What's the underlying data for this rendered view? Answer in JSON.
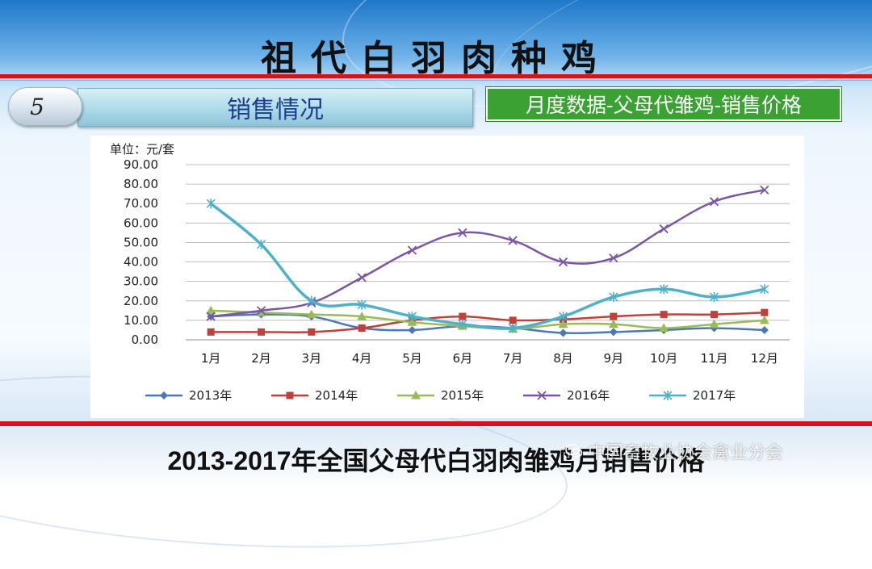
{
  "slide": {
    "title": "祖代白羽肉种鸡",
    "section_number": "5",
    "section_title": "销售情况",
    "badge": "月度数据-父母代雏鸡-销售价格",
    "caption": "2013-2017年全国父母代白羽肉雏鸡月销售价格",
    "watermark": "中国畜牧业协会禽业分会",
    "colors": {
      "title_red_rule": "#d4141b",
      "badge_green": "#3aa132",
      "section_text": "#1b3f8a"
    }
  },
  "chart_data": {
    "type": "line",
    "unit_label": "单位：元/套",
    "categories": [
      "1月",
      "2月",
      "3月",
      "4月",
      "5月",
      "6月",
      "7月",
      "8月",
      "9月",
      "10月",
      "11月",
      "12月"
    ],
    "ylim": [
      0,
      90
    ],
    "yticks": [
      "0.00",
      "10.00",
      "20.00",
      "30.00",
      "40.00",
      "50.00",
      "60.00",
      "70.00",
      "80.00",
      "90.00"
    ],
    "grid": true,
    "legend_position": "bottom",
    "series": [
      {
        "name": "2013年",
        "color": "#4b79b8",
        "marker": "diamond",
        "values": [
          12,
          13,
          12,
          6,
          5,
          7,
          6,
          3.5,
          4,
          5,
          6,
          5
        ]
      },
      {
        "name": "2014年",
        "color": "#c0413b",
        "marker": "square",
        "values": [
          4,
          4,
          4,
          6,
          10,
          12,
          10,
          10.5,
          12,
          13,
          13,
          14
        ]
      },
      {
        "name": "2015年",
        "color": "#9bbb59",
        "marker": "triangle",
        "values": [
          15,
          14,
          13,
          12,
          9,
          7,
          5.5,
          8,
          8,
          6,
          8,
          10
        ]
      },
      {
        "name": "2016年",
        "color": "#7a56a5",
        "marker": "x",
        "values": [
          12,
          15,
          19,
          32,
          46,
          55,
          51,
          40,
          42,
          57,
          71,
          77
        ]
      },
      {
        "name": "2017年",
        "color": "#4fb1c9",
        "marker": "star",
        "values": [
          70,
          49,
          20,
          18,
          12,
          8,
          6,
          12,
          22,
          26,
          22,
          26
        ]
      }
    ]
  }
}
